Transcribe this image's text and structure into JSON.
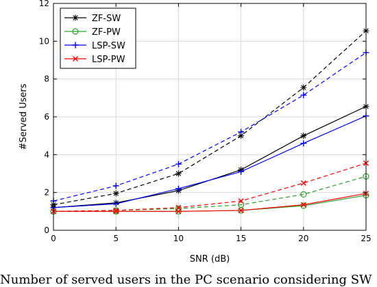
{
  "chart_data": {
    "type": "line",
    "title": "",
    "xlabel": "SNR (dB)",
    "ylabel": "#Served Users",
    "xlim": [
      0,
      25
    ],
    "ylim": [
      0,
      12
    ],
    "xticks": [
      "0",
      "5",
      "10",
      "15",
      "20",
      "25"
    ],
    "yticks": [
      "0",
      "2",
      "4",
      "6",
      "8",
      "10",
      "12"
    ],
    "grid": true,
    "legend_position": "top-left",
    "x": [
      0,
      5,
      10,
      15,
      20,
      25
    ],
    "legend": [
      {
        "name": "ZF-SW",
        "color": "#000000",
        "marker": "star"
      },
      {
        "name": "ZF-PW",
        "color": "#2ca02c",
        "marker": "circle"
      },
      {
        "name": "LSP-SW",
        "color": "#0000ff",
        "marker": "plus"
      },
      {
        "name": "LSP-PW",
        "color": "#ff0000",
        "marker": "x"
      }
    ],
    "series": [
      {
        "name": "ZF-SW",
        "color": "#000000",
        "marker": "star",
        "dash": "solid",
        "values": [
          1.2,
          1.45,
          2.1,
          3.2,
          5.0,
          6.55
        ]
      },
      {
        "name": "ZF-SW",
        "color": "#000000",
        "marker": "star",
        "dash": "dashed",
        "values": [
          1.35,
          1.95,
          3.0,
          5.0,
          7.55,
          10.55
        ]
      },
      {
        "name": "ZF-PW",
        "color": "#2ca02c",
        "marker": "circle",
        "dash": "solid",
        "values": [
          1.0,
          1.0,
          1.0,
          1.05,
          1.3,
          1.85
        ]
      },
      {
        "name": "ZF-PW",
        "color": "#2ca02c",
        "marker": "circle",
        "dash": "dashed",
        "values": [
          1.0,
          1.05,
          1.15,
          1.35,
          1.9,
          2.85
        ]
      },
      {
        "name": "LSP-SW",
        "color": "#0000ff",
        "marker": "plus",
        "dash": "solid",
        "values": [
          1.2,
          1.4,
          2.2,
          3.1,
          4.6,
          6.05
        ]
      },
      {
        "name": "LSP-SW",
        "color": "#0000ff",
        "marker": "plus",
        "dash": "dashed",
        "values": [
          1.55,
          2.35,
          3.5,
          5.2,
          7.15,
          9.4
        ]
      },
      {
        "name": "LSP-PW",
        "color": "#ff0000",
        "marker": "x",
        "dash": "solid",
        "values": [
          1.0,
          1.0,
          1.0,
          1.05,
          1.35,
          1.95
        ]
      },
      {
        "name": "LSP-PW",
        "color": "#ff0000",
        "marker": "x",
        "dash": "dashed",
        "values": [
          1.0,
          1.05,
          1.2,
          1.55,
          2.5,
          3.55
        ]
      }
    ]
  },
  "caption": "Number of served users in the PC scenario considering SW"
}
